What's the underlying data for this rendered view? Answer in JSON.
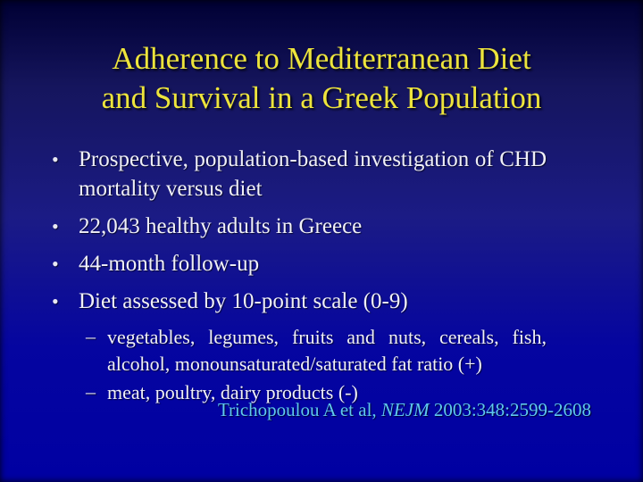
{
  "slide": {
    "title": {
      "line1": "Adherence to Mediterranean Diet",
      "line2": "and Survival in a Greek Population"
    },
    "bullets": [
      {
        "level": 1,
        "text": "Prospective, population-based investigation of CHD mortality versus diet"
      },
      {
        "level": 1,
        "text": "22,043 healthy adults in Greece"
      },
      {
        "level": 1,
        "text": "44-month follow-up"
      },
      {
        "level": 1,
        "text": "Diet assessed by 10-point scale (0-9)"
      },
      {
        "level": 2,
        "text": "vegetables, legumes, fruits and nuts, cereals, fish, alcohol, monounsaturated/saturated fat ratio (+)"
      },
      {
        "level": 2,
        "text": "meat, poultry, dairy products (-)"
      }
    ],
    "citation": {
      "prefix": "Trichopoulou A et al, ",
      "journal_italic": "NEJM",
      "suffix": " 2003:348:2599-2608"
    },
    "markers": {
      "bullet": "•",
      "dash": "–"
    },
    "colors": {
      "background_top": "#000033",
      "background_bottom": "#0000A2",
      "title_yellow": "#EDE43C",
      "body_text": "#F0F0F8",
      "citation_blue": "#5FC9EE"
    }
  }
}
